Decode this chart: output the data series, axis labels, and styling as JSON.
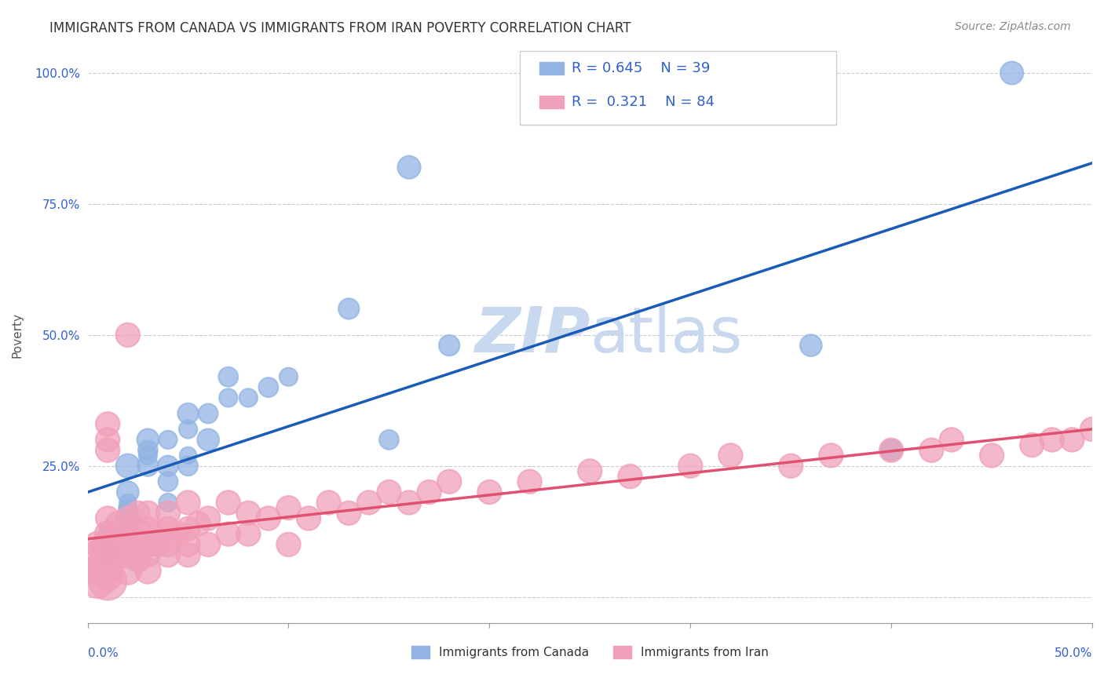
{
  "title": "IMMIGRANTS FROM CANADA VS IMMIGRANTS FROM IRAN POVERTY CORRELATION CHART",
  "source": "Source: ZipAtlas.com",
  "ylabel": "Poverty",
  "xlim": [
    0,
    0.5
  ],
  "ylim": [
    -0.05,
    1.05
  ],
  "canada_R": 0.645,
  "canada_N": 39,
  "iran_R": 0.321,
  "iran_N": 84,
  "canada_color": "#92b4e3",
  "iran_color": "#f0a0b8",
  "canada_line_color": "#1a5cb5",
  "iran_line_color": "#e05070",
  "legend_text_color": "#3060d0",
  "title_color": "#333333",
  "canada_x": [
    0.01,
    0.01,
    0.01,
    0.01,
    0.01,
    0.01,
    0.02,
    0.02,
    0.02,
    0.02,
    0.02,
    0.02,
    0.02,
    0.03,
    0.03,
    0.03,
    0.03,
    0.04,
    0.04,
    0.04,
    0.04,
    0.05,
    0.05,
    0.05,
    0.05,
    0.06,
    0.06,
    0.07,
    0.07,
    0.08,
    0.09,
    0.1,
    0.13,
    0.15,
    0.16,
    0.18,
    0.36,
    0.4,
    0.46
  ],
  "canada_y": [
    0.07,
    0.08,
    0.09,
    0.1,
    0.12,
    0.13,
    0.13,
    0.15,
    0.16,
    0.17,
    0.18,
    0.2,
    0.25,
    0.25,
    0.27,
    0.28,
    0.3,
    0.18,
    0.22,
    0.25,
    0.3,
    0.25,
    0.27,
    0.32,
    0.35,
    0.3,
    0.35,
    0.38,
    0.42,
    0.38,
    0.4,
    0.42,
    0.55,
    0.3,
    0.82,
    0.48,
    0.48,
    0.28,
    1.0
  ],
  "canada_size": [
    40,
    50,
    60,
    30,
    35,
    25,
    45,
    55,
    40,
    35,
    30,
    50,
    60,
    45,
    35,
    40,
    50,
    35,
    40,
    45,
    35,
    40,
    30,
    35,
    45,
    50,
    40,
    35,
    40,
    35,
    40,
    35,
    45,
    40,
    55,
    45,
    50,
    45,
    55
  ],
  "iran_x": [
    0.005,
    0.005,
    0.005,
    0.005,
    0.005,
    0.008,
    0.008,
    0.008,
    0.01,
    0.01,
    0.01,
    0.01,
    0.01,
    0.01,
    0.01,
    0.01,
    0.015,
    0.015,
    0.015,
    0.015,
    0.02,
    0.02,
    0.02,
    0.02,
    0.02,
    0.025,
    0.025,
    0.025,
    0.025,
    0.025,
    0.03,
    0.03,
    0.03,
    0.03,
    0.03,
    0.035,
    0.035,
    0.04,
    0.04,
    0.04,
    0.04,
    0.045,
    0.05,
    0.05,
    0.05,
    0.05,
    0.055,
    0.06,
    0.06,
    0.07,
    0.07,
    0.08,
    0.08,
    0.09,
    0.1,
    0.1,
    0.11,
    0.12,
    0.13,
    0.14,
    0.15,
    0.16,
    0.17,
    0.18,
    0.2,
    0.22,
    0.25,
    0.27,
    0.3,
    0.32,
    0.35,
    0.37,
    0.4,
    0.42,
    0.43,
    0.45,
    0.47,
    0.48,
    0.49,
    0.5,
    0.01,
    0.01,
    0.01,
    0.02
  ],
  "iran_y": [
    0.03,
    0.05,
    0.06,
    0.08,
    0.1,
    0.05,
    0.07,
    0.09,
    0.03,
    0.04,
    0.06,
    0.07,
    0.08,
    0.1,
    0.12,
    0.15,
    0.08,
    0.1,
    0.12,
    0.14,
    0.05,
    0.08,
    0.1,
    0.12,
    0.15,
    0.07,
    0.09,
    0.11,
    0.13,
    0.16,
    0.05,
    0.08,
    0.1,
    0.13,
    0.16,
    0.1,
    0.12,
    0.08,
    0.1,
    0.13,
    0.16,
    0.12,
    0.08,
    0.1,
    0.13,
    0.18,
    0.14,
    0.1,
    0.15,
    0.12,
    0.18,
    0.12,
    0.16,
    0.15,
    0.1,
    0.17,
    0.15,
    0.18,
    0.16,
    0.18,
    0.2,
    0.18,
    0.2,
    0.22,
    0.2,
    0.22,
    0.24,
    0.23,
    0.25,
    0.27,
    0.25,
    0.27,
    0.28,
    0.28,
    0.3,
    0.27,
    0.29,
    0.3,
    0.3,
    0.32,
    0.3,
    0.28,
    0.33,
    0.5
  ],
  "iran_size": [
    120,
    80,
    60,
    90,
    70,
    80,
    60,
    70,
    150,
    90,
    80,
    70,
    60,
    80,
    70,
    60,
    70,
    60,
    70,
    60,
    80,
    70,
    60,
    70,
    60,
    60,
    60,
    60,
    60,
    60,
    70,
    60,
    60,
    60,
    60,
    60,
    60,
    60,
    60,
    60,
    60,
    60,
    60,
    60,
    60,
    60,
    60,
    60,
    60,
    60,
    60,
    60,
    60,
    60,
    60,
    60,
    60,
    60,
    60,
    60,
    60,
    60,
    60,
    60,
    60,
    60,
    60,
    60,
    60,
    60,
    60,
    60,
    60,
    60,
    60,
    60,
    60,
    60,
    60,
    60,
    60,
    60,
    60,
    60
  ],
  "watermark_zip": "ZIP",
  "watermark_atlas": "atlas",
  "watermark_color": "#c8d8ee",
  "grid_color": "#cccccc",
  "background_color": "#ffffff"
}
